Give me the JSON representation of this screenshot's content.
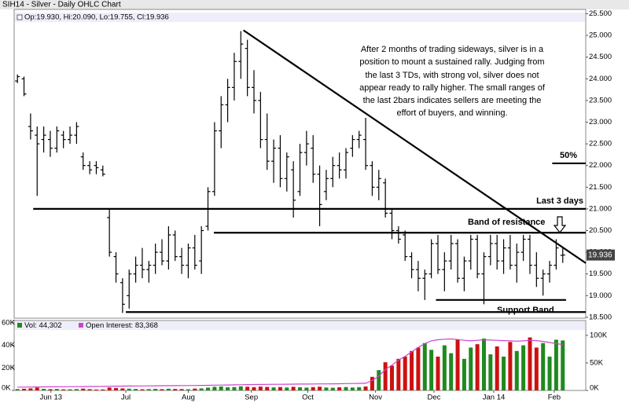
{
  "chart_data": {
    "type": "ohlc",
    "title": "SIH14 - Silver - Daily OHLC Chart",
    "legend_text": "Op:19.930, Hi:20.090, Lo:19.755, Cl:19.936",
    "color": "#000000",
    "open": [
      23.95,
      24.0,
      22.9,
      22.7,
      22.6,
      22.6,
      22.4,
      22.7,
      22.6,
      22.7,
      22.2,
      22.0,
      22.0,
      21.9,
      20.8,
      19.9,
      19.3,
      19.0,
      19.5,
      19.7,
      19.6,
      19.7,
      20.0,
      19.8,
      20.4,
      19.9,
      19.7,
      20.1,
      19.8,
      20.6,
      21.4,
      22.8,
      23.4,
      23.8,
      24.4,
      24.7,
      23.8,
      23.5,
      22.6,
      22.1,
      22.4,
      21.7,
      21.9,
      21.4,
      22.3,
      22.4,
      21.8,
      21.4,
      21.7,
      22.0,
      21.9,
      22.4,
      22.6,
      22.6,
      22.0,
      21.5,
      21.6,
      20.9,
      20.5,
      20.4,
      19.9,
      19.6,
      19.4,
      19.5,
      20.2,
      19.6,
      19.8,
      20.2,
      19.4,
      19.8,
      20.3,
      19.5,
      19.9,
      20.2,
      19.8,
      20.1,
      19.7,
      20.0,
      20.3,
      19.7,
      19.4,
      19.5,
      19.7,
      19.93
    ],
    "high": [
      24.1,
      24.05,
      23.2,
      22.9,
      22.9,
      22.8,
      22.9,
      22.8,
      22.9,
      23.0,
      22.3,
      22.1,
      22.1,
      22.0,
      21.0,
      20.0,
      19.4,
      19.6,
      19.9,
      20.1,
      19.8,
      20.2,
      20.3,
      20.6,
      20.5,
      20.1,
      20.2,
      20.4,
      20.6,
      21.5,
      23.0,
      23.6,
      24.0,
      24.6,
      25.1,
      24.9,
      24.2,
      23.7,
      23.2,
      22.6,
      22.7,
      22.3,
      22.1,
      22.5,
      22.8,
      22.7,
      22.0,
      21.9,
      22.2,
      22.3,
      22.4,
      22.7,
      22.8,
      23.1,
      22.1,
      21.9,
      21.7,
      21.0,
      20.6,
      20.5,
      20.0,
      19.8,
      19.6,
      20.3,
      20.4,
      20.0,
      20.4,
      20.3,
      19.9,
      20.4,
      20.4,
      20.0,
      20.4,
      20.4,
      20.3,
      20.4,
      20.2,
      20.4,
      20.4,
      20.0,
      19.6,
      19.8,
      20.3,
      20.09
    ],
    "low": [
      23.9,
      23.6,
      22.6,
      21.3,
      22.3,
      22.2,
      22.3,
      22.4,
      22.5,
      22.5,
      21.9,
      21.8,
      21.8,
      21.75,
      19.9,
      19.3,
      18.6,
      18.7,
      19.3,
      19.4,
      19.3,
      19.5,
      19.7,
      19.6,
      19.8,
      19.5,
      19.4,
      19.6,
      19.5,
      20.5,
      21.3,
      22.4,
      23.0,
      23.5,
      24.0,
      23.6,
      23.2,
      22.4,
      21.9,
      21.6,
      21.5,
      21.4,
      20.8,
      21.3,
      22.0,
      21.6,
      20.6,
      21.2,
      21.5,
      21.7,
      21.7,
      22.2,
      22.4,
      21.9,
      21.3,
      21.2,
      20.8,
      20.3,
      20.2,
      19.8,
      19.4,
      19.1,
      18.9,
      19.4,
      19.5,
      19.1,
      19.6,
      19.3,
      19.1,
      19.6,
      19.4,
      18.8,
      19.7,
      19.6,
      19.5,
      19.6,
      19.3,
      19.8,
      19.5,
      19.2,
      19.0,
      19.3,
      19.6,
      19.755
    ],
    "close": [
      24.05,
      23.65,
      22.8,
      22.5,
      22.7,
      22.4,
      22.8,
      22.6,
      22.7,
      22.9,
      22.0,
      21.9,
      21.95,
      21.8,
      20.0,
      19.5,
      18.8,
      19.5,
      19.7,
      19.6,
      19.7,
      20.0,
      19.8,
      20.4,
      19.9,
      19.7,
      20.1,
      19.7,
      20.5,
      21.4,
      22.8,
      23.4,
      23.8,
      24.4,
      24.8,
      23.8,
      23.5,
      22.6,
      22.1,
      22.4,
      21.7,
      22.2,
      21.2,
      22.3,
      22.5,
      21.8,
      21.1,
      21.7,
      22.0,
      21.9,
      22.3,
      22.6,
      22.7,
      22.0,
      21.5,
      21.7,
      20.9,
      20.5,
      20.3,
      19.9,
      19.6,
      19.4,
      19.5,
      20.2,
      19.6,
      19.8,
      20.2,
      19.4,
      19.8,
      20.3,
      19.5,
      19.9,
      20.2,
      19.8,
      20.1,
      19.7,
      20.0,
      20.3,
      19.7,
      19.4,
      19.5,
      19.7,
      20.1,
      19.936
    ],
    "xlim": [
      -0.5,
      86.5
    ],
    "xticks": [
      {
        "value": 5.1,
        "label": "Jun 13"
      },
      {
        "value": 16.5,
        "label": "Jul"
      },
      {
        "value": 26.0,
        "label": "Aug"
      },
      {
        "value": 35.6,
        "label": "Sep"
      },
      {
        "value": 44.2,
        "label": "Oct"
      },
      {
        "value": 54.5,
        "label": "Nov"
      },
      {
        "value": 63.4,
        "label": "Dec"
      },
      {
        "value": 72.5,
        "label": "Jan 14"
      },
      {
        "value": 81.7,
        "label": "Feb"
      }
    ],
    "ylim": [
      18.48,
      25.6
    ],
    "yticks": [
      {
        "value": 18.5,
        "label": "18.500"
      },
      {
        "value": 19.0,
        "label": "19.000"
      },
      {
        "value": 19.5,
        "label": "19.500"
      },
      {
        "value": 20.0,
        "label": "20.000"
      },
      {
        "value": 20.5,
        "label": "20.500"
      },
      {
        "value": 21.0,
        "label": "21.000"
      },
      {
        "value": 21.5,
        "label": "21.500"
      },
      {
        "value": 22.0,
        "label": "22.000"
      },
      {
        "value": 22.5,
        "label": "22.500"
      },
      {
        "value": 23.0,
        "label": "23.000"
      },
      {
        "value": 23.5,
        "label": "23.500"
      },
      {
        "value": 24.0,
        "label": "24.000"
      },
      {
        "value": 24.5,
        "label": "24.500"
      },
      {
        "value": 25.0,
        "label": "25.000"
      },
      {
        "value": 25.5,
        "label": "25.500"
      }
    ],
    "drawings": [
      {
        "x": [
          2.4,
          86.5
        ],
        "y": [
          21.0,
          21.0
        ]
      },
      {
        "x": [
          29.9,
          86.5
        ],
        "y": [
          20.45,
          20.45
        ]
      },
      {
        "x": [
          16.5,
          86.5
        ],
        "y": [
          18.62,
          18.62
        ]
      },
      {
        "x": [
          63.7,
          83.5
        ],
        "y": [
          18.9,
          18.9
        ]
      },
      {
        "x": [
          81.4,
          86.5
        ],
        "y": [
          22.05,
          22.05
        ]
      },
      {
        "x": [
          34.4,
          86.5
        ],
        "y": [
          25.12,
          19.75
        ]
      }
    ],
    "annotations": [
      "After 2 months of trading sideways, silver is in a",
      "position to mount a sustained rally.  Judging from",
      "the last 3 TDs, with strong vol, silver does not",
      "appear ready to rally higher.  The small ranges of",
      "the last 2bars indicates sellers are meeting the",
      "effort of buyers, and winning.",
      "50%",
      "Last 3 days",
      "Band of resistance",
      "Support Band"
    ],
    "volume": {
      "legend": "Vol: 44,302",
      "up_color": "#1f8a1f",
      "down_color": "#cc1111",
      "values": [
        1200,
        1500,
        1800,
        2500,
        1400,
        1100,
        1300,
        900,
        1000,
        1200,
        1600,
        1100,
        800,
        900,
        2600,
        2200,
        1800,
        1500,
        1300,
        1000,
        1200,
        1400,
        1100,
        1500,
        1300,
        1200,
        1000,
        1600,
        1800,
        2500,
        3200,
        3500,
        2800,
        3000,
        3600,
        3300,
        2900,
        3400,
        3100,
        2700,
        3000,
        2600,
        3200,
        2800,
        2500,
        2900,
        3300,
        2600,
        2400,
        2800,
        3000,
        2600,
        2900,
        3500,
        12000,
        18000,
        25000,
        22000,
        28000,
        30000,
        35000,
        38000,
        42000,
        36000,
        30000,
        40000,
        33000,
        45000,
        28000,
        38000,
        41000,
        46000,
        32000,
        39000,
        30000,
        43000,
        35000,
        40000,
        47000,
        38000,
        42000,
        30000,
        45000,
        44302
      ],
      "ylim": [
        0,
        62000
      ],
      "yticks": [
        {
          "value": 0,
          "label": "0K"
        },
        {
          "value": 20000,
          "label": "20K"
        },
        {
          "value": 40000,
          "label": "40K"
        },
        {
          "value": 60000,
          "label": "60K"
        }
      ]
    },
    "open_interest": {
      "legend": "Open Interest: 83,368",
      "color": "#cc44cc",
      "values": [
        6000,
        6100,
        6200,
        6300,
        6400,
        6500,
        6600,
        6700,
        6800,
        6900,
        7000,
        7100,
        7200,
        7300,
        7500,
        7700,
        7900,
        8000,
        8100,
        8200,
        8300,
        8400,
        8500,
        8600,
        8700,
        8800,
        8900,
        9000,
        9100,
        9300,
        9500,
        9700,
        9900,
        10100,
        10300,
        10500,
        10700,
        10900,
        11000,
        11100,
        11200,
        11300,
        11400,
        11500,
        11600,
        11700,
        11800,
        11900,
        12000,
        12200,
        12400,
        12600,
        12800,
        13000,
        18000,
        26000,
        38000,
        46000,
        55000,
        62000,
        70000,
        78000,
        85000,
        90000,
        92000,
        93000,
        93500,
        92500,
        91000,
        90000,
        91000,
        92000,
        91500,
        91000,
        90500,
        90000,
        89500,
        90000,
        91000,
        90500,
        89000,
        87000,
        85000,
        83368
      ],
      "y2lim": [
        0,
        127000
      ],
      "y2ticks": [
        {
          "value": 0,
          "label": "0K"
        },
        {
          "value": 50000,
          "label": "50K"
        },
        {
          "value": 100000,
          "label": "100K"
        }
      ]
    }
  }
}
